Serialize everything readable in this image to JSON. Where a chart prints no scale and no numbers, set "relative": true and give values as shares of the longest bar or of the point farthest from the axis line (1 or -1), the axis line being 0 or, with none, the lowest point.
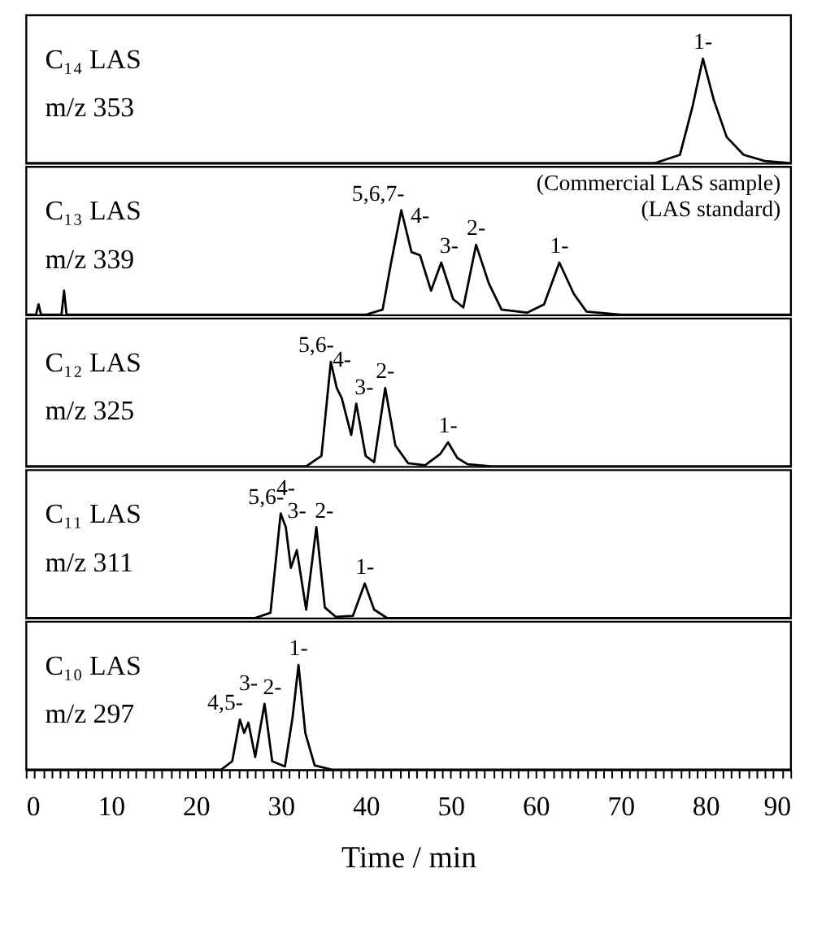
{
  "chart_data": [
    {
      "type": "line",
      "title": "C₁₄ LAS",
      "subtitle": "m/z 353",
      "relative": true,
      "tick_labels": false,
      "xlim": [
        0,
        90
      ],
      "x": [
        0,
        74,
        77,
        78.5,
        79.7,
        81,
        82.5,
        84.5,
        87,
        90
      ],
      "series": [
        {
          "color": "#000000",
          "values": [
            0,
            0,
            0.08,
            0.55,
            1,
            0.6,
            0.25,
            0.08,
            0.02,
            0
          ]
        }
      ],
      "annotations": [
        {
          "text": "1-",
          "x": 79.7,
          "y": 1
        }
      ]
    },
    {
      "type": "line",
      "title": "C₁₃ LAS",
      "subtitle": "m/z 339",
      "relative": true,
      "tick_labels": false,
      "xlim": [
        0,
        90
      ],
      "x": [
        0,
        1.2,
        1.5,
        1.8,
        4.2,
        4.5,
        4.8,
        40,
        42,
        43,
        44.2,
        45.4,
        46.4,
        47.7,
        48.9,
        50.3,
        51.5,
        53,
        54.5,
        56,
        59,
        61,
        62.8,
        64.5,
        66,
        70,
        90
      ],
      "series": [
        {
          "color": "#000000",
          "values": [
            0,
            0,
            0.1,
            0,
            0,
            0.23,
            0,
            0,
            0.05,
            0.5,
            1,
            0.6,
            0.57,
            0.23,
            0.5,
            0.15,
            0.07,
            0.67,
            0.3,
            0.05,
            0.02,
            0.1,
            0.5,
            0.2,
            0.03,
            0,
            0
          ]
        }
      ],
      "annotations": [
        {
          "text": "5,6,7-",
          "x": 44.2,
          "y": 1
        },
        {
          "text": "4-",
          "x": 46.4,
          "y": 0.57
        },
        {
          "text": "3-",
          "x": 48.9,
          "y": 0.5
        },
        {
          "text": "2-",
          "x": 53,
          "y": 0.67
        },
        {
          "text": "1-",
          "x": 62.8,
          "y": 0.5
        },
        "(Commercial LAS sample)",
        "(LAS standard)"
      ]
    },
    {
      "type": "line",
      "title": "C₁₂ LAS",
      "subtitle": "m/z 325",
      "relative": true,
      "tick_labels": false,
      "xlim": [
        0,
        90
      ],
      "x": [
        0,
        33,
        34.8,
        35.9,
        36.6,
        37.2,
        38.3,
        38.9,
        40,
        41,
        42.3,
        43.5,
        45,
        47,
        48.8,
        49.7,
        50.8,
        52,
        55,
        90
      ],
      "series": [
        {
          "color": "#000000",
          "values": [
            0,
            0,
            0.1,
            1,
            0.75,
            0.65,
            0.3,
            0.6,
            0.1,
            0.04,
            0.75,
            0.2,
            0.03,
            0.01,
            0.12,
            0.23,
            0.08,
            0.02,
            0,
            0
          ]
        }
      ],
      "annotations": [
        {
          "text": "5,6-",
          "x": 35.9,
          "y": 1
        },
        {
          "text": "4-",
          "x": 37.2,
          "y": 0.65
        },
        {
          "text": "3-",
          "x": 38.9,
          "y": 0.6
        },
        {
          "text": "2-",
          "x": 42.3,
          "y": 0.75
        },
        {
          "text": "1-",
          "x": 49.7,
          "y": 0.23
        }
      ]
    },
    {
      "type": "line",
      "title": "C₁₁ LAS",
      "subtitle": "m/z 311",
      "relative": true,
      "tick_labels": false,
      "xlim": [
        0,
        90
      ],
      "x": [
        0,
        27,
        28.8,
        30,
        30.6,
        31.2,
        31.9,
        33,
        34.2,
        35.2,
        36.5,
        38.5,
        39.9,
        41,
        42.5,
        90
      ],
      "series": [
        {
          "color": "#000000",
          "values": [
            0,
            0,
            0.05,
            1,
            0.87,
            0.48,
            0.65,
            0.08,
            0.87,
            0.1,
            0.01,
            0.02,
            0.33,
            0.08,
            0,
            0
          ]
        }
      ],
      "annotations": [
        {
          "text": "5,6-",
          "x": 30,
          "y": 1
        },
        {
          "text": "4-",
          "x": 30.6,
          "y": 0.87
        },
        {
          "text": "3-",
          "x": 31.9,
          "y": 0.65
        },
        {
          "text": "2-",
          "x": 34.2,
          "y": 0.87
        },
        {
          "text": "1-",
          "x": 39.9,
          "y": 0.33
        }
      ]
    },
    {
      "type": "line",
      "title": "C₁₀ LAS",
      "subtitle": "m/z 297",
      "relative": true,
      "xlabel": "Time / min",
      "xlim": [
        0,
        90
      ],
      "xticks": [
        0,
        {
          "value": 1,
          "label": null
        },
        {
          "value": 2,
          "label": null
        },
        {
          "value": 3,
          "label": null
        },
        {
          "value": 4,
          "label": null
        },
        {
          "value": 5,
          "label": null
        },
        {
          "value": 6,
          "label": null
        },
        {
          "value": 7,
          "label": null
        },
        {
          "value": 8,
          "label": null
        },
        {
          "value": 9,
          "label": null
        },
        10,
        {
          "value": 11,
          "label": null
        },
        {
          "value": 12,
          "label": null
        },
        {
          "value": 13,
          "label": null
        },
        {
          "value": 14,
          "label": null
        },
        {
          "value": 15,
          "label": null
        },
        {
          "value": 16,
          "label": null
        },
        {
          "value": 17,
          "label": null
        },
        {
          "value": 18,
          "label": null
        },
        {
          "value": 19,
          "label": null
        },
        20,
        {
          "value": 21,
          "label": null
        },
        {
          "value": 22,
          "label": null
        },
        {
          "value": 23,
          "label": null
        },
        {
          "value": 24,
          "label": null
        },
        {
          "value": 25,
          "label": null
        },
        {
          "value": 26,
          "label": null
        },
        {
          "value": 27,
          "label": null
        },
        {
          "value": 28,
          "label": null
        },
        {
          "value": 29,
          "label": null
        },
        30,
        {
          "value": 31,
          "label": null
        },
        {
          "value": 32,
          "label": null
        },
        {
          "value": 33,
          "label": null
        },
        {
          "value": 34,
          "label": null
        },
        {
          "value": 35,
          "label": null
        },
        {
          "value": 36,
          "label": null
        },
        {
          "value": 37,
          "label": null
        },
        {
          "value": 38,
          "label": null
        },
        {
          "value": 39,
          "label": null
        },
        40,
        {
          "value": 41,
          "label": null
        },
        {
          "value": 42,
          "label": null
        },
        {
          "value": 43,
          "label": null
        },
        {
          "value": 44,
          "label": null
        },
        {
          "value": 45,
          "label": null
        },
        {
          "value": 46,
          "label": null
        },
        {
          "value": 47,
          "label": null
        },
        {
          "value": 48,
          "label": null
        },
        {
          "value": 49,
          "label": null
        },
        50,
        {
          "value": 51,
          "label": null
        },
        {
          "value": 52,
          "label": null
        },
        {
          "value": 53,
          "label": null
        },
        {
          "value": 54,
          "label": null
        },
        {
          "value": 55,
          "label": null
        },
        {
          "value": 56,
          "label": null
        },
        {
          "value": 57,
          "label": null
        },
        {
          "value": 58,
          "label": null
        },
        {
          "value": 59,
          "label": null
        },
        60,
        {
          "value": 61,
          "label": null
        },
        {
          "value": 62,
          "label": null
        },
        {
          "value": 63,
          "label": null
        },
        {
          "value": 64,
          "label": null
        },
        {
          "value": 65,
          "label": null
        },
        {
          "value": 66,
          "label": null
        },
        {
          "value": 67,
          "label": null
        },
        {
          "value": 68,
          "label": null
        },
        {
          "value": 69,
          "label": null
        },
        70,
        {
          "value": 71,
          "label": null
        },
        {
          "value": 72,
          "label": null
        },
        {
          "value": 73,
          "label": null
        },
        {
          "value": 74,
          "label": null
        },
        {
          "value": 75,
          "label": null
        },
        {
          "value": 76,
          "label": null
        },
        {
          "value": 77,
          "label": null
        },
        {
          "value": 78,
          "label": null
        },
        {
          "value": 79,
          "label": null
        },
        80,
        {
          "value": 81,
          "label": null
        },
        {
          "value": 82,
          "label": null
        },
        {
          "value": 83,
          "label": null
        },
        {
          "value": 84,
          "label": null
        },
        {
          "value": 85,
          "label": null
        },
        {
          "value": 86,
          "label": null
        },
        {
          "value": 87,
          "label": null
        },
        {
          "value": 88,
          "label": null
        },
        {
          "value": 89,
          "label": null
        },
        90
      ],
      "x": [
        0,
        23,
        24.3,
        25.2,
        25.7,
        26.2,
        27,
        28.1,
        29,
        30.5,
        31.4,
        32.1,
        32.9,
        34,
        36,
        90
      ],
      "series": [
        {
          "color": "#000000",
          "values": [
            0,
            0,
            0.08,
            0.48,
            0.35,
            0.45,
            0.12,
            0.63,
            0.08,
            0.03,
            0.5,
            1,
            0.35,
            0.04,
            0,
            0
          ]
        }
      ],
      "annotations": [
        {
          "text": "4,5-",
          "x": 25.2,
          "y": 0.48
        },
        {
          "text": "3-",
          "x": 26.2,
          "y": 0.45
        },
        {
          "text": "2-",
          "x": 28.1,
          "y": 0.63
        },
        {
          "text": "1-",
          "x": 32.1,
          "y": 1
        }
      ]
    }
  ]
}
